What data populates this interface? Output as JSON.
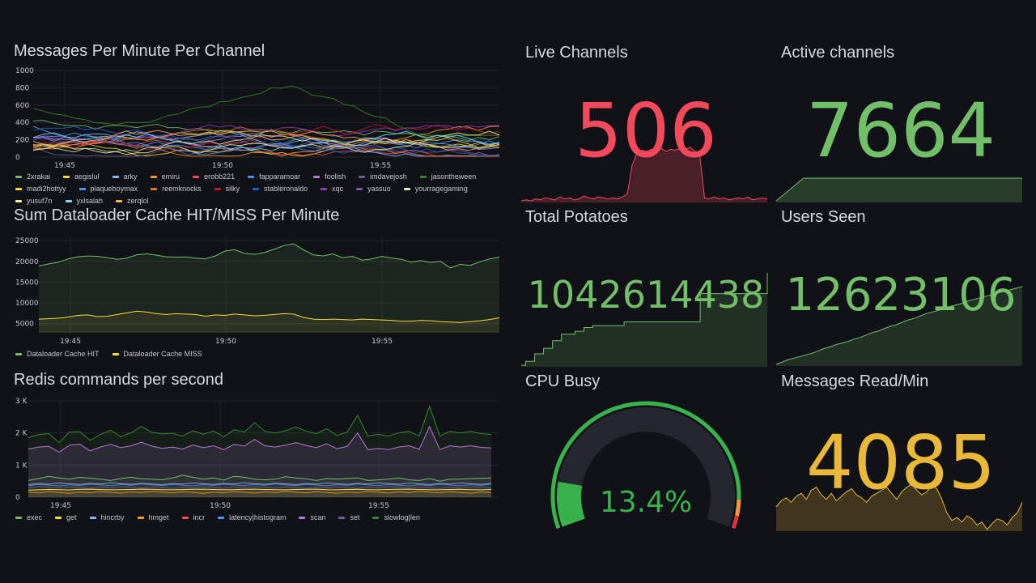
{
  "colors": {
    "green": "#73bf69",
    "red": "#f2495c",
    "yellow": "#fade2a",
    "amber": "#eab839",
    "purple": "#b877d9",
    "gauge_track": "#25272f"
  },
  "panels": {
    "messages_per_minute": {
      "title": "Messages Per Minute Per Channel",
      "chart_data": {
        "type": "line",
        "title": "Messages Per Minute Per Channel",
        "y_ticks": [
          "1000",
          "800",
          "600",
          "400",
          "200",
          "0"
        ],
        "ylim": [
          0,
          1000
        ],
        "x_ticks": [
          "19:45",
          "19:50",
          "19:55"
        ],
        "series_names": [
          "2xrakai",
          "aegislul",
          "arky",
          "emiru",
          "erobb221",
          "fapparamoar",
          "foolish",
          "imdavejosh",
          "jasontheween",
          "madi2hottyy",
          "plaqueboymax",
          "reemknocks",
          "silky",
          "stableronaldo",
          "xqc",
          "yassuo",
          "yourragegaming",
          "yusuf7n",
          "yxlsalah",
          "zerqlol"
        ],
        "series_colors": [
          "#73bf69",
          "#fade2a",
          "#8ab8ff",
          "#ff9830",
          "#f2495c",
          "#5794f2",
          "#b877d9",
          "#705da0",
          "#37872d",
          "#fade2a",
          "#5794f2",
          "#e0752d",
          "#c4162a",
          "#1f60c4",
          "#8f3bb8",
          "#705da0",
          "#c8f2c2",
          "#fff899",
          "#73e0ff",
          "#ffb357"
        ]
      },
      "legend": [
        "2xrakai",
        "aegislul",
        "arky",
        "emiru",
        "erobb221",
        "fapparamoar",
        "foolish",
        "imdavejosh",
        "jasontheween",
        "madi2hottyy",
        "plaqueboymax",
        "reemknocks",
        "silky",
        "stableronaldo",
        "xqc",
        "yassuo",
        "yourragegaming",
        "yusuf7n",
        "yxlsalah",
        "zerqlol"
      ]
    },
    "dataloader": {
      "title": "Sum Dataloader Cache HIT/MISS Per Minute",
      "chart_data": {
        "type": "area",
        "title": "Sum Dataloader Cache HIT/MISS Per Minute",
        "y_ticks": [
          "25000",
          "20000",
          "15000",
          "10000",
          "5000"
        ],
        "ylim": [
          2800,
          26000
        ],
        "x_ticks": [
          "19:45",
          "19:50",
          "19:55"
        ],
        "series": [
          {
            "name": "Dataloader Cache HIT",
            "color": "#73bf69",
            "values": [
              18900,
              19400,
              19800,
              20600,
              21100,
              21300,
              21200,
              20900,
              20500,
              20800,
              21600,
              21800,
              21500,
              21100,
              21000,
              21050,
              20800,
              20600,
              21300,
              22500,
              22800,
              21900,
              21700,
              22100,
              22900,
              23800,
              24200,
              22800,
              21600,
              21300,
              21800,
              20900,
              21200,
              20300,
              20600,
              21200,
              20800,
              20500,
              19800,
              20200,
              19700,
              20000,
              18400,
              19300,
              19000,
              19900,
              20600,
              21000
            ]
          },
          {
            "name": "Dataloader Cache MISS",
            "color": "#fade2a",
            "values": [
              6100,
              6200,
              6300,
              6600,
              7000,
              7100,
              6700,
              6800,
              7200,
              7600,
              8000,
              7800,
              7400,
              7200,
              7400,
              7300,
              7200,
              6800,
              7100,
              7000,
              7300,
              7100,
              6900,
              7000,
              7200,
              7400,
              7300,
              6500,
              6100,
              6000,
              6100,
              6000,
              5900,
              6100,
              6000,
              5900,
              5800,
              5600,
              5600,
              5800,
              5700,
              5500,
              5400,
              5300,
              5500,
              5700,
              6000,
              6400
            ]
          }
        ]
      },
      "legend": [
        "Dataloader Cache HIT",
        "Dataloader Cache MISS"
      ]
    },
    "redis": {
      "title": "Redis commands per second",
      "chart_data": {
        "type": "area",
        "title": "Redis commands per second",
        "y_ticks": [
          "3 K",
          "2 K",
          "1 K",
          "0"
        ],
        "ylim": [
          0,
          3000
        ],
        "x_ticks": [
          "19:45",
          "19:50",
          "19:55"
        ],
        "series": [
          {
            "name": "slowlog|len",
            "color": "#37872d",
            "values": [
              1850,
              1950,
              1980,
              1700,
              2030,
              2040,
              1770,
              1950,
              2080,
              1880,
              2010,
              2200,
              2020,
              1970,
              1990,
              1900,
              2070,
              1960,
              2060,
              1880,
              2100,
              2030,
              2320,
              2050,
              2000,
              2070,
              2180,
              2060,
              1980,
              2130,
              1920,
              2030,
              2550,
              1900,
              1960,
              1900,
              2000,
              2050,
              1900,
              2830,
              1900,
              2050,
              2000,
              2050,
              1980,
              1950
            ]
          },
          {
            "name": "scan",
            "color": "#b877d9",
            "values": [
              1500,
              1560,
              1580,
              1400,
              1620,
              1650,
              1440,
              1560,
              1640,
              1540,
              1600,
              1710,
              1590,
              1520,
              1560,
              1500,
              1620,
              1540,
              1600,
              1480,
              1640,
              1590,
              1800,
              1600,
              1560,
              1620,
              1700,
              1610,
              1540,
              1660,
              1510,
              1580,
              2000,
              1480,
              1520,
              1480,
              1560,
              1600,
              1490,
              2200,
              1480,
              1600,
              1560,
              1600,
              1550,
              1530
            ]
          },
          {
            "name": "exec",
            "color": "#73bf69",
            "values": [
              520,
              580,
              650,
              600,
              560,
              620,
              590,
              560,
              520,
              580,
              620,
              570,
              560,
              540,
              600,
              680,
              620,
              560,
              600,
              530,
              650,
              620,
              560,
              540,
              560,
              640,
              600,
              570,
              520,
              580,
              560,
              580,
              600,
              520,
              540,
              560,
              600,
              540,
              520,
              580,
              500,
              560,
              560,
              580,
              590,
              600
            ]
          },
          {
            "name": "get",
            "color": "#fade2a",
            "values": [
              220,
              230,
              240,
              235,
              225,
              245,
              250,
              240,
              230,
              235,
              240,
              250,
              245,
              235,
              230,
              240,
              245,
              250,
              240,
              230,
              235,
              245,
              250,
              240,
              235,
              230,
              240,
              245,
              250,
              235,
              230,
              240,
              245,
              235,
              230,
              240,
              245,
              250,
              240,
              235,
              230,
              240,
              245,
              235,
              230,
              240
            ]
          }
        ]
      },
      "legend": [
        "exec",
        "get",
        "hincrby",
        "hmget",
        "incr",
        "latency|histogram",
        "scan",
        "set",
        "slowlog|len"
      ],
      "legend_colors": [
        "#73bf69",
        "#fade2a",
        "#8ab8ff",
        "#ff9830",
        "#f2495c",
        "#5794f2",
        "#b877d9",
        "#705da0",
        "#37872d"
      ]
    },
    "live_channels": {
      "title": "Live Channels",
      "value": "506",
      "color": "#f2495c",
      "spark": [
        3,
        4,
        3,
        5,
        4,
        6,
        5,
        4,
        7,
        5,
        6,
        4,
        5,
        8,
        6,
        5,
        7,
        6,
        5,
        6,
        5,
        7,
        10,
        40,
        52,
        55,
        54,
        56,
        55,
        57,
        54,
        56,
        55,
        57,
        56,
        58,
        54,
        50,
        6,
        5,
        7,
        5,
        6,
        4,
        5,
        6,
        5,
        7,
        4,
        5,
        6,
        5
      ]
    },
    "active_channels": {
      "title": "Active channels",
      "value": "7664",
      "color": "#73bf69",
      "spark": [
        50,
        50,
        50,
        50,
        50,
        50,
        50,
        50,
        50,
        50
      ]
    },
    "total_potatoes": {
      "title": "Total Potatoes",
      "value": "1042614438",
      "color": "#73bf69",
      "spark": [
        2,
        6,
        6,
        14,
        14,
        20,
        20,
        28,
        28,
        35,
        35,
        35,
        38,
        38,
        42,
        42,
        44,
        44,
        44,
        44,
        44,
        44,
        44,
        48,
        48,
        48,
        48,
        48,
        48,
        48,
        48,
        48,
        48,
        48,
        48,
        48,
        48,
        48,
        48,
        48,
        78,
        78,
        78,
        78,
        78,
        78,
        78,
        78,
        78,
        78,
        78,
        78,
        78,
        78,
        78,
        100
      ]
    },
    "users_seen": {
      "title": "Users Seen",
      "value": "12623106",
      "color": "#73bf69",
      "spark": [
        2,
        5,
        8,
        10,
        12,
        14,
        16,
        19,
        22,
        24,
        27,
        29,
        31,
        34,
        36,
        39,
        42,
        44,
        47,
        50,
        52,
        55,
        58,
        60,
        63,
        66,
        68,
        70,
        72,
        75,
        77,
        79,
        82,
        84,
        86,
        88,
        90,
        92,
        94,
        96,
        98,
        100
      ]
    },
    "cpu_busy": {
      "title": "CPU Busy",
      "value": "13.4%",
      "percent": 13.4,
      "color": "#37b24d"
    },
    "messages_read": {
      "title": "Messages Read/Min",
      "value": "4085",
      "color": "#eab839",
      "spark": [
        30,
        38,
        42,
        36,
        44,
        48,
        40,
        52,
        56,
        46,
        40,
        48,
        38,
        44,
        50,
        54,
        46,
        42,
        36,
        44,
        48,
        52,
        56,
        48,
        40,
        50,
        56,
        60,
        52,
        46,
        50,
        58,
        54,
        40,
        22,
        12,
        16,
        10,
        18,
        14,
        6,
        10,
        0,
        8,
        14,
        12,
        6,
        16,
        22,
        36
      ]
    }
  }
}
